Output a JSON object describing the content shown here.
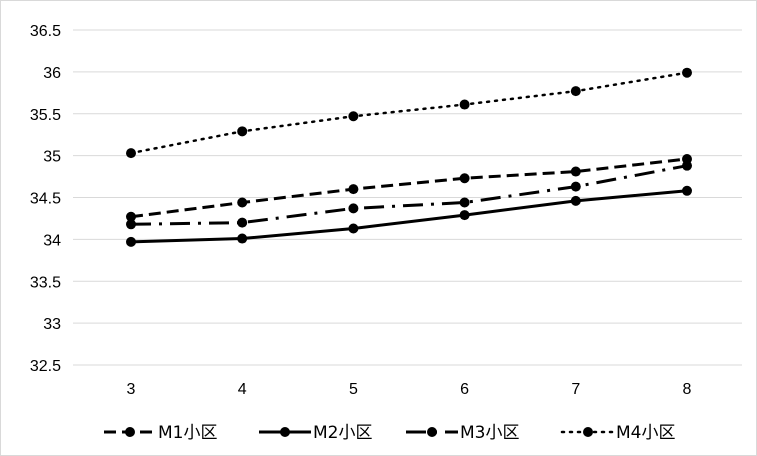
{
  "chart_data": {
    "type": "line",
    "categories": [
      "3",
      "4",
      "5",
      "6",
      "7",
      "8"
    ],
    "series": [
      {
        "name": "M1小区",
        "values": [
          34.27,
          34.44,
          34.6,
          34.73,
          34.81,
          34.96
        ],
        "dash": "dashed"
      },
      {
        "name": "M2小区",
        "values": [
          33.97,
          34.01,
          34.13,
          34.29,
          34.46,
          34.58
        ],
        "dash": "solid"
      },
      {
        "name": "M3小区",
        "values": [
          34.18,
          34.2,
          34.37,
          34.44,
          34.63,
          34.88
        ],
        "dash": "dashdot"
      },
      {
        "name": "M4小区",
        "values": [
          35.03,
          35.29,
          35.47,
          35.61,
          35.77,
          35.99
        ],
        "dash": "dotted"
      }
    ],
    "y_ticks": [
      "32.5",
      "33",
      "33.5",
      "34",
      "34.5",
      "35",
      "35.5",
      "36",
      "36.5"
    ],
    "ylim": [
      32.5,
      36.5
    ],
    "xlabel": "",
    "ylabel": "",
    "title": "",
    "grid": "horizontal",
    "legend_position": "bottom",
    "line_color": "#000000",
    "grid_color": "#d9d9d9"
  }
}
